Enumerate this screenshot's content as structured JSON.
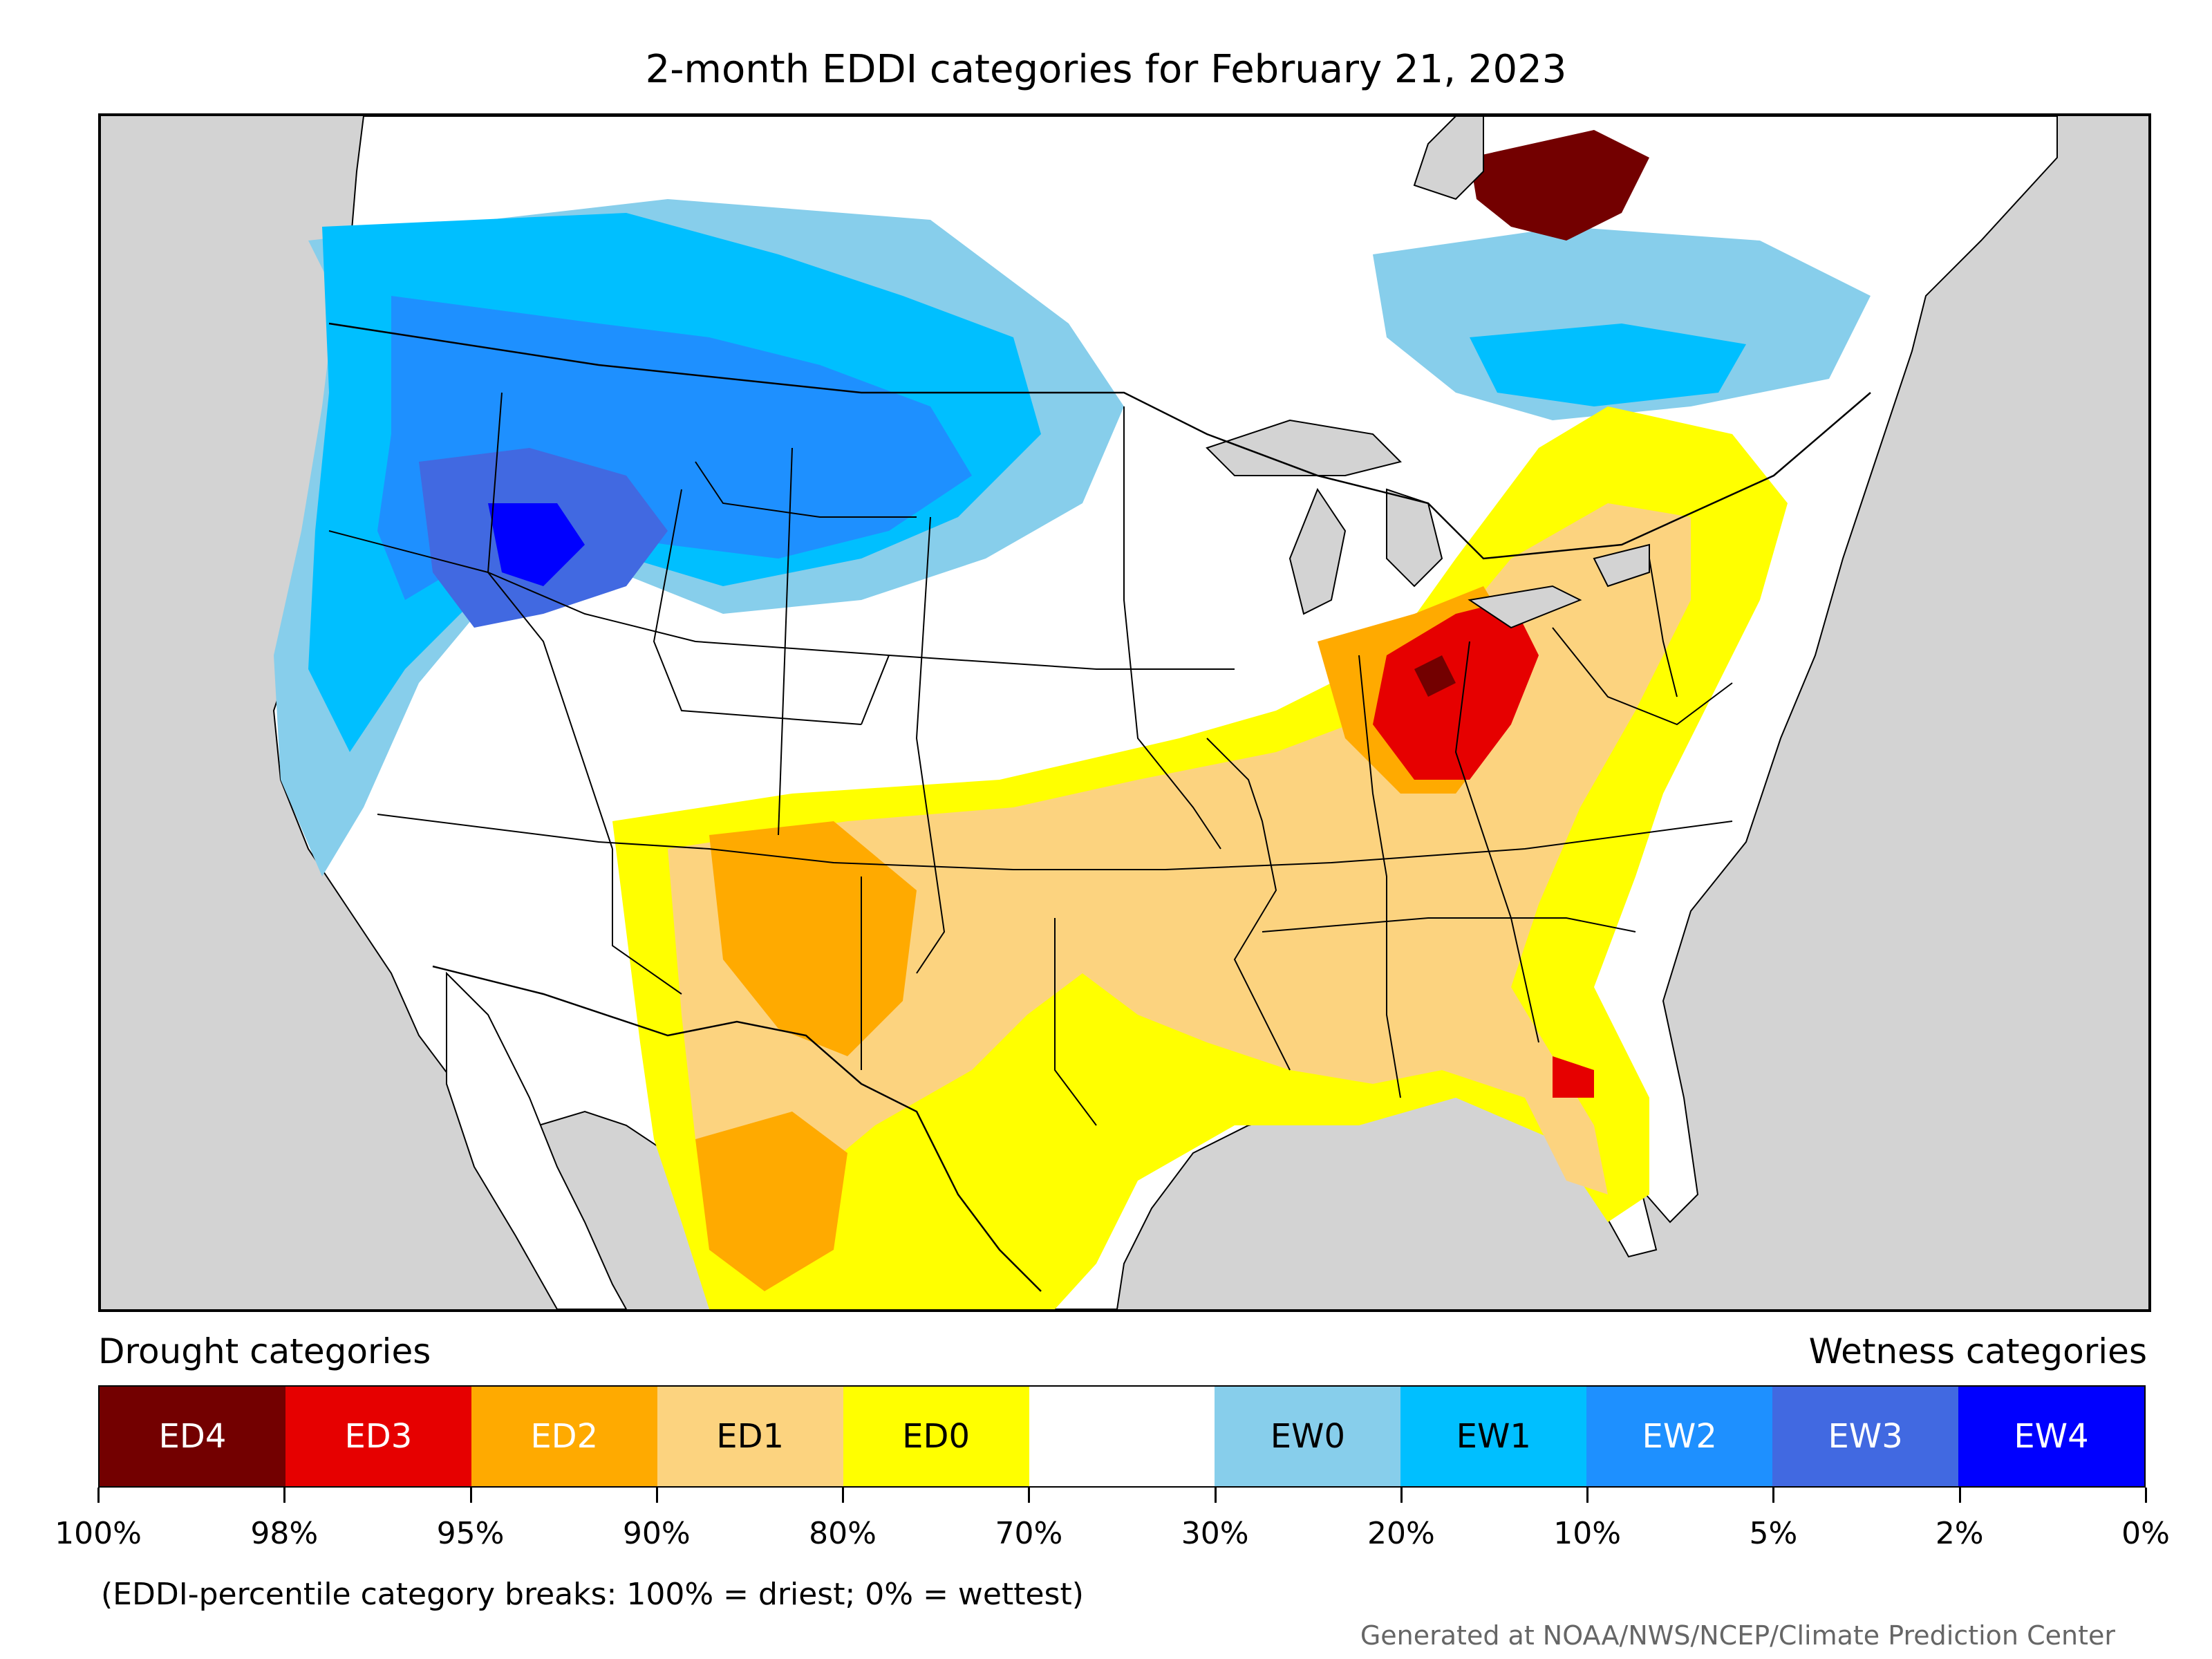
{
  "title": "2-month EDDI categories for February 21, 2023",
  "legend": {
    "drought_heading": "Drought categories",
    "wetness_heading": "Wetness categories",
    "categories": [
      {
        "label": "ED4",
        "color": "#730000",
        "text_color": "#ffffff"
      },
      {
        "label": "ED3",
        "color": "#e60000",
        "text_color": "#ffffff"
      },
      {
        "label": "ED2",
        "color": "#ffaa00",
        "text_color": "#ffffff"
      },
      {
        "label": "ED1",
        "color": "#fcd37f",
        "text_color": "#000000"
      },
      {
        "label": "ED0",
        "color": "#ffff00",
        "text_color": "#000000"
      },
      {
        "label": "",
        "color": "#ffffff",
        "text_color": "#000000"
      },
      {
        "label": "EW0",
        "color": "#87ceeb",
        "text_color": "#000000"
      },
      {
        "label": "EW1",
        "color": "#00bfff",
        "text_color": "#000000"
      },
      {
        "label": "EW2",
        "color": "#1e90ff",
        "text_color": "#ffffff"
      },
      {
        "label": "EW3",
        "color": "#4169e1",
        "text_color": "#ffffff"
      },
      {
        "label": "EW4",
        "color": "#0000ff",
        "text_color": "#ffffff"
      }
    ],
    "tick_labels": [
      "100%",
      "98%",
      "95%",
      "90%",
      "80%",
      "70%",
      "30%",
      "20%",
      "10%",
      "5%",
      "2%",
      "0%"
    ],
    "note": "(EDDI-percentile category breaks: 100% = driest; 0% = wettest)"
  },
  "credit": "Generated at NOAA/NWS/NCEP/Climate Prediction Center",
  "map": {
    "background_color": "#d3d3d3",
    "land_color": "#ffffff",
    "regions": [
      {
        "name": "pacific-northwest-wet",
        "category": "EW2"
      },
      {
        "name": "great-basin-wet",
        "category": "EW3"
      },
      {
        "name": "northern-plains-wet",
        "category": "EW1"
      },
      {
        "name": "southern-plains-dry",
        "category": "ED1"
      },
      {
        "name": "ohio-valley-dry",
        "category": "ED3"
      },
      {
        "name": "quebec-dry",
        "category": "ED4"
      },
      {
        "name": "southeast-dry",
        "category": "ED1"
      },
      {
        "name": "mexico-north-dry",
        "category": "ED2"
      }
    ]
  }
}
